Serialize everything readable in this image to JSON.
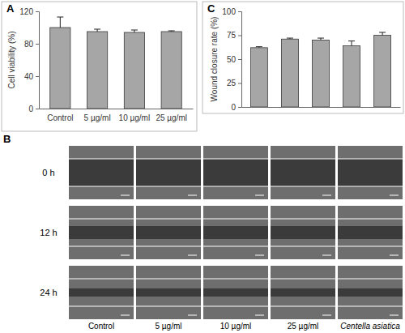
{
  "chart_data": [
    {
      "type": "bar",
      "panel": "A",
      "y_label": "Cell viability (%)",
      "categories": [
        "Control",
        "5 µg/ml",
        "10 µg/ml",
        "25 µg/ml"
      ],
      "values": [
        100,
        95,
        94,
        95
      ],
      "errors": [
        13,
        3,
        3,
        1
      ],
      "color": "#a6a6a6",
      "ylim": [
        0,
        120
      ],
      "yticks": [
        0,
        40,
        80,
        120
      ]
    },
    {
      "type": "bar",
      "panel": "C",
      "y_label": "Wound closure rate (%)",
      "categories": [
        null,
        null,
        null,
        null,
        null
      ],
      "values": [
        62,
        71,
        70,
        64,
        75
      ],
      "errors": [
        1,
        1,
        2,
        5,
        3
      ],
      "color": "#a6a6a6",
      "ylim": [
        0,
        100
      ],
      "yticks": [
        0,
        25,
        50,
        75,
        100
      ],
      "tick_labels": "y"
    }
  ],
  "image_panel": {
    "panel": "B",
    "row_labels": [
      "0 h",
      "12 h",
      "24 h"
    ],
    "column_labels": [
      "Control",
      "5 µg/ml",
      "10 µg/ml",
      "25 µg/ml",
      "Centella asiatica"
    ]
  }
}
